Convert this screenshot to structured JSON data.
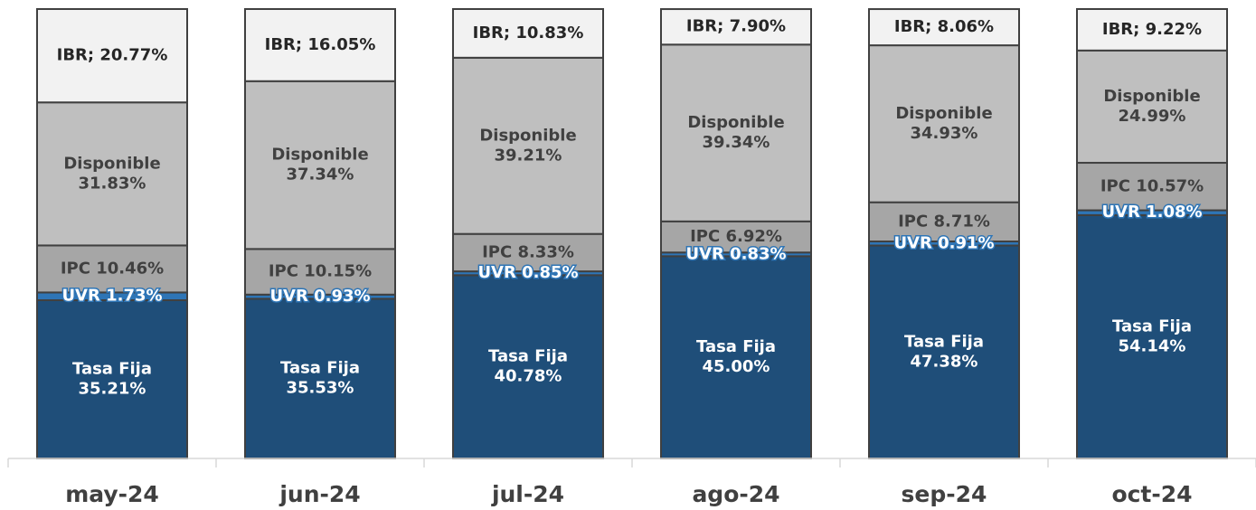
{
  "chart_data": {
    "type": "stacked_bar",
    "categories": [
      "may-24",
      "jun-24",
      "jul-24",
      "ago-24",
      "sep-24",
      "oct-24"
    ],
    "ylim": [
      0,
      100
    ],
    "series": [
      {
        "color": "#1f4e79",
        "label_color": "#ffffff",
        "values": [
          35.21,
          35.53,
          40.78,
          45.0,
          47.38,
          54.14
        ],
        "value_labels": [
          "Tasa Fija\n35.21%",
          "Tasa Fija\n35.53%",
          "Tasa Fija\n40.78%",
          "Tasa Fija\n45.00%",
          "Tasa Fija\n47.38%",
          "Tasa Fija\n54.14%"
        ]
      },
      {
        "color": "#2e75b6",
        "label_color": "#ffffff",
        "values": [
          1.73,
          0.93,
          0.85,
          0.83,
          0.91,
          1.08
        ],
        "value_labels": [
          "UVR 1.73%",
          "UVR 0.93%",
          "UVR 0.85%",
          "UVR 0.83%",
          "UVR 0.91%",
          "UVR 1.08%"
        ]
      },
      {
        "color": "#a6a6a6",
        "label_color": "#404040",
        "values": [
          10.46,
          10.15,
          8.33,
          6.92,
          8.71,
          10.57
        ],
        "value_labels": [
          "IPC 10.46%",
          "IPC 10.15%",
          "IPC 8.33%",
          "IPC 6.92%",
          "IPC 8.71%",
          "IPC 10.57%"
        ]
      },
      {
        "color": "#bfbfbf",
        "label_color": "#404040",
        "values": [
          31.83,
          37.34,
          39.21,
          39.34,
          34.93,
          24.99
        ],
        "value_labels": [
          "Disponible\n31.83%",
          "Disponible\n37.34%",
          "Disponible\n39.21%",
          "Disponible\n39.34%",
          "Disponible\n34.93%",
          "Disponible\n24.99%"
        ]
      },
      {
        "color": "#f2f2f2",
        "label_color": "#262626",
        "values": [
          20.77,
          16.05,
          10.83,
          7.9,
          8.06,
          9.22
        ],
        "value_labels": [
          "IBR; 20.77%",
          "IBR; 16.05%",
          "IBR; 10.83%",
          "IBR; 7.90%",
          "IBR; 8.06%",
          "IBR; 9.22%"
        ]
      }
    ]
  }
}
